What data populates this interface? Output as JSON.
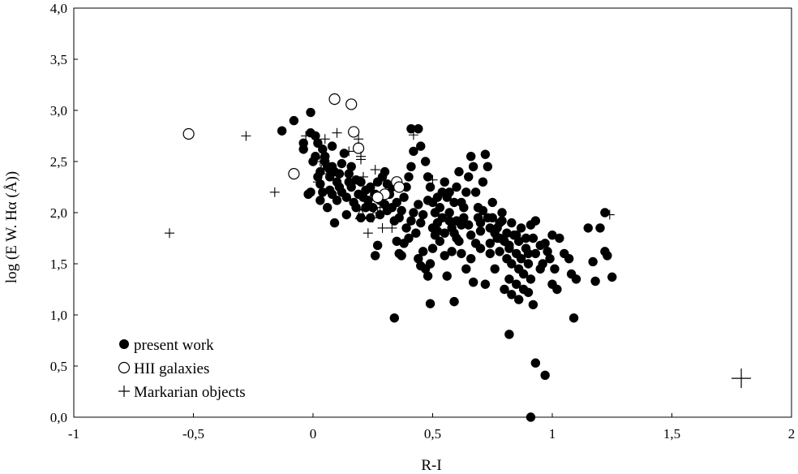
{
  "chart_data": {
    "type": "scatter",
    "title": "",
    "xlabel": "R-I",
    "ylabel": "log (E W. Hα (Å))",
    "xlim": [
      -1,
      2
    ],
    "ylim": [
      0,
      4
    ],
    "grid": false,
    "legend_position": "bottom-left",
    "x_ticks": [
      -1,
      -0.5,
      0,
      0.5,
      1,
      1.5,
      2
    ],
    "x_tick_labels": [
      "-1",
      "-0,5",
      "0",
      "0,5",
      "1",
      "1,5",
      "2"
    ],
    "y_ticks": [
      0,
      0.5,
      1,
      1.5,
      2,
      2.5,
      3,
      3.5,
      4
    ],
    "y_tick_labels": [
      "0,0",
      "0,5",
      "1,0",
      "1,5",
      "2,0",
      "2,5",
      "3,0",
      "3,5",
      "4,0"
    ],
    "series": [
      {
        "name": "present work",
        "marker": "filled-circle",
        "color": "#000000",
        "points": [
          [
            -0.13,
            2.8
          ],
          [
            -0.08,
            2.9
          ],
          [
            -0.01,
            2.98
          ],
          [
            -0.04,
            2.62
          ],
          [
            -0.04,
            2.68
          ],
          [
            -0.01,
            2.78
          ],
          [
            0.01,
            2.75
          ],
          [
            0.02,
            2.68
          ],
          [
            0.04,
            2.62
          ],
          [
            0.01,
            2.55
          ],
          [
            0.05,
            2.5
          ],
          [
            0.06,
            2.45
          ],
          [
            0.03,
            2.4
          ],
          [
            0.07,
            2.35
          ],
          [
            -0.01,
            2.2
          ],
          [
            -0.02,
            2.18
          ],
          [
            0.03,
            2.28
          ],
          [
            0.07,
            2.42
          ],
          [
            0.09,
            2.4
          ],
          [
            0.1,
            2.3
          ],
          [
            0.11,
            2.25
          ],
          [
            0.12,
            2.2
          ],
          [
            0.15,
            2.38
          ],
          [
            0.16,
            2.25
          ],
          [
            0.14,
            2.15
          ],
          [
            0.17,
            2.1
          ],
          [
            0.18,
            2.05
          ],
          [
            0.2,
            2.3
          ],
          [
            0.21,
            2.15
          ],
          [
            0.22,
            2.22
          ],
          [
            0.23,
            2.12
          ],
          [
            0.25,
            2.05
          ],
          [
            0.26,
            2.18
          ],
          [
            0.27,
            2.3
          ],
          [
            0.29,
            2.35
          ],
          [
            0.3,
            2.4
          ],
          [
            0.31,
            2.28
          ],
          [
            0.32,
            2.18
          ],
          [
            0.33,
            2.05
          ],
          [
            0.35,
            2.1
          ],
          [
            0.36,
            1.95
          ],
          [
            0.38,
            2.15
          ],
          [
            0.39,
            2.25
          ],
          [
            0.4,
            2.35
          ],
          [
            0.41,
            2.45
          ],
          [
            0.42,
            2.6
          ],
          [
            0.41,
            2.82
          ],
          [
            0.44,
            2.82
          ],
          [
            0.45,
            2.65
          ],
          [
            0.47,
            2.5
          ],
          [
            0.48,
            2.35
          ],
          [
            0.49,
            2.25
          ],
          [
            0.5,
            2.1
          ],
          [
            0.51,
            2.0
          ],
          [
            0.52,
            1.9
          ],
          [
            0.53,
            2.05
          ],
          [
            0.54,
            2.2
          ],
          [
            0.55,
            2.3
          ],
          [
            0.56,
            2.15
          ],
          [
            0.57,
            2.0
          ],
          [
            0.58,
            1.85
          ],
          [
            0.59,
            2.1
          ],
          [
            0.6,
            2.25
          ],
          [
            0.61,
            2.4
          ],
          [
            0.62,
            2.1
          ],
          [
            0.63,
            1.95
          ],
          [
            0.64,
            2.2
          ],
          [
            0.65,
            2.35
          ],
          [
            0.66,
            2.55
          ],
          [
            0.67,
            2.45
          ],
          [
            0.68,
            2.2
          ],
          [
            0.69,
            2.05
          ],
          [
            0.7,
            1.9
          ],
          [
            0.71,
            2.3
          ],
          [
            0.72,
            2.57
          ],
          [
            0.73,
            2.45
          ],
          [
            0.74,
            1.85
          ],
          [
            0.75,
            1.95
          ],
          [
            0.76,
            1.8
          ],
          [
            0.77,
            1.75
          ],
          [
            0.78,
            1.9
          ],
          [
            0.79,
            2.0
          ],
          [
            0.8,
            1.72
          ],
          [
            0.81,
            1.55
          ],
          [
            0.82,
            1.65
          ],
          [
            0.83,
            1.5
          ],
          [
            0.84,
            1.78
          ],
          [
            0.85,
            1.6
          ],
          [
            0.86,
            1.45
          ],
          [
            0.87,
            1.55
          ],
          [
            0.88,
            1.4
          ],
          [
            0.89,
            1.65
          ],
          [
            0.9,
            1.5
          ],
          [
            0.91,
            1.35
          ],
          [
            0.92,
            1.75
          ],
          [
            0.93,
            1.6
          ],
          [
            0.95,
            1.45
          ],
          [
            0.97,
            1.7
          ],
          [
            0.99,
            1.55
          ],
          [
            1.0,
            1.3
          ],
          [
            1.02,
            1.25
          ],
          [
            1.03,
            1.75
          ],
          [
            1.05,
            1.6
          ],
          [
            1.07,
            1.55
          ],
          [
            1.08,
            1.4
          ],
          [
            1.1,
            1.35
          ],
          [
            1.15,
            1.85
          ],
          [
            1.17,
            1.52
          ],
          [
            1.18,
            1.33
          ],
          [
            1.2,
            1.85
          ],
          [
            1.22,
            1.62
          ],
          [
            1.22,
            2.0
          ],
          [
            1.23,
            1.58
          ],
          [
            1.25,
            1.37
          ],
          [
            0.05,
            2.55
          ],
          [
            0.08,
            2.65
          ],
          [
            0.12,
            2.48
          ],
          [
            0.13,
            2.58
          ],
          [
            0.03,
            2.12
          ],
          [
            0.06,
            2.05
          ],
          [
            0.08,
            2.18
          ],
          [
            0.09,
            1.9
          ],
          [
            0.14,
            1.98
          ],
          [
            0.2,
            1.95
          ],
          [
            0.24,
            1.95
          ],
          [
            0.27,
            1.68
          ],
          [
            0.26,
            1.58
          ],
          [
            0.34,
            1.92
          ],
          [
            0.35,
            1.72
          ],
          [
            0.36,
            1.6
          ],
          [
            0.37,
            1.58
          ],
          [
            0.4,
            1.75
          ],
          [
            0.43,
            1.8
          ],
          [
            0.44,
            1.55
          ],
          [
            0.45,
            1.48
          ],
          [
            0.46,
            1.62
          ],
          [
            0.47,
            1.45
          ],
          [
            0.48,
            1.38
          ],
          [
            0.49,
            1.5
          ],
          [
            0.5,
            1.65
          ],
          [
            0.51,
            1.78
          ],
          [
            0.53,
            1.72
          ],
          [
            0.55,
            1.58
          ],
          [
            0.56,
            1.38
          ],
          [
            0.58,
            1.62
          ],
          [
            0.6,
            1.75
          ],
          [
            0.62,
            1.6
          ],
          [
            0.64,
            1.45
          ],
          [
            0.66,
            1.55
          ],
          [
            0.67,
            1.32
          ],
          [
            0.68,
            1.7
          ],
          [
            0.7,
            1.65
          ],
          [
            0.72,
            1.3
          ],
          [
            0.74,
            1.6
          ],
          [
            0.76,
            1.45
          ],
          [
            0.78,
            1.62
          ],
          [
            0.8,
            1.25
          ],
          [
            0.82,
            1.35
          ],
          [
            0.83,
            1.2
          ],
          [
            0.85,
            1.3
          ],
          [
            0.86,
            1.15
          ],
          [
            0.88,
            1.25
          ],
          [
            0.9,
            1.22
          ],
          [
            0.92,
            1.1
          ],
          [
            0.34,
            0.97
          ],
          [
            0.49,
            1.11
          ],
          [
            0.59,
            1.13
          ],
          [
            0.82,
            0.81
          ],
          [
            1.09,
            0.97
          ],
          [
            0.93,
            0.53
          ],
          [
            0.97,
            0.41
          ],
          [
            0.91,
            0.0
          ],
          [
            0.52,
            2.15
          ],
          [
            0.54,
            1.95
          ],
          [
            0.57,
            2.2
          ],
          [
            0.6,
            1.92
          ],
          [
            0.63,
            2.05
          ],
          [
            0.65,
            1.88
          ],
          [
            0.69,
            1.95
          ],
          [
            0.71,
            2.02
          ],
          [
            0.73,
            1.95
          ],
          [
            0.75,
            2.1
          ],
          [
            0.77,
            1.85
          ],
          [
            0.79,
            1.92
          ],
          [
            0.81,
            1.8
          ],
          [
            0.83,
            1.9
          ],
          [
            0.85,
            1.78
          ],
          [
            0.87,
            1.85
          ],
          [
            0.89,
            1.75
          ],
          [
            0.91,
            1.88
          ],
          [
            0.93,
            1.92
          ],
          [
            0.95,
            1.68
          ],
          [
            0.96,
            1.5
          ],
          [
            0.98,
            1.62
          ],
          [
            1.0,
            1.78
          ],
          [
            1.01,
            1.45
          ],
          [
            0.42,
            2.0
          ],
          [
            0.44,
            2.08
          ],
          [
            0.46,
            1.98
          ],
          [
            0.48,
            2.12
          ],
          [
            0.5,
            1.85
          ],
          [
            0.52,
            1.82
          ],
          [
            0.55,
            1.8
          ],
          [
            0.57,
            1.92
          ],
          [
            0.59,
            1.8
          ],
          [
            0.61,
            1.72
          ],
          [
            0.3,
            2.08
          ],
          [
            0.28,
            1.98
          ],
          [
            0.31,
            2.02
          ],
          [
            0.22,
            2.05
          ],
          [
            0.19,
            2.18
          ],
          [
            0.18,
            2.32
          ],
          [
            0.16,
            2.45
          ],
          [
            0.11,
            2.38
          ],
          [
            0.1,
            2.12
          ],
          [
            0.07,
            2.22
          ],
          [
            0.04,
            2.2
          ],
          [
            0.02,
            2.35
          ],
          [
            0.0,
            2.5
          ],
          [
            0.08,
            2.45
          ],
          [
            0.15,
            2.3
          ],
          [
            0.24,
            2.25
          ],
          [
            0.28,
            2.12
          ],
          [
            0.33,
            2.25
          ],
          [
            0.37,
            2.02
          ],
          [
            0.39,
            1.85
          ],
          [
            0.41,
            1.92
          ],
          [
            0.45,
            1.9
          ],
          [
            0.38,
            1.7
          ],
          [
            0.62,
            1.88
          ],
          [
            0.66,
            1.78
          ],
          [
            0.7,
            1.82
          ],
          [
            0.74,
            1.7
          ],
          [
            0.78,
            1.75
          ],
          [
            0.82,
            1.68
          ],
          [
            0.86,
            1.72
          ],
          [
            0.9,
            1.6
          ]
        ]
      },
      {
        "name": "HII galaxies",
        "marker": "open-circle",
        "color": "#000000",
        "points": [
          [
            -0.52,
            2.77
          ],
          [
            0.09,
            3.11
          ],
          [
            0.16,
            3.06
          ],
          [
            0.17,
            2.79
          ],
          [
            0.19,
            2.63
          ],
          [
            -0.08,
            2.38
          ],
          [
            0.35,
            2.3
          ],
          [
            0.36,
            2.25
          ],
          [
            0.3,
            2.18
          ],
          [
            0.27,
            2.15
          ]
        ]
      },
      {
        "name": "Markarian objects",
        "marker": "plus",
        "color": "#000000",
        "points": [
          [
            -0.28,
            2.75
          ],
          [
            -0.16,
            2.2
          ],
          [
            -0.6,
            1.8
          ],
          [
            -0.03,
            2.75
          ],
          [
            0.05,
            2.72
          ],
          [
            0.1,
            2.78
          ],
          [
            0.15,
            2.6
          ],
          [
            0.19,
            2.72
          ],
          [
            0.2,
            2.55
          ],
          [
            0.2,
            2.52
          ],
          [
            0.26,
            2.42
          ],
          [
            0.21,
            2.35
          ],
          [
            0.24,
            2.2
          ],
          [
            0.28,
            2.05
          ],
          [
            0.25,
            1.95
          ],
          [
            0.23,
            1.8
          ],
          [
            0.29,
            1.85
          ],
          [
            0.33,
            1.85
          ],
          [
            0.42,
            2.76
          ],
          [
            0.5,
            2.32
          ],
          [
            1.24,
            1.98
          ],
          [
            0.03,
            2.5
          ],
          [
            0.02,
            2.3
          ],
          [
            0.27,
            2.0
          ]
        ]
      },
      {
        "name": "",
        "marker": "open-triangle",
        "color": "#000000",
        "points": [
          [
            0.04,
            2.42
          ],
          [
            0.2,
            1.98
          ]
        ]
      }
    ],
    "annotations": [
      {
        "marker": "large-plus",
        "x": 1.79,
        "y": 0.38
      }
    ]
  }
}
